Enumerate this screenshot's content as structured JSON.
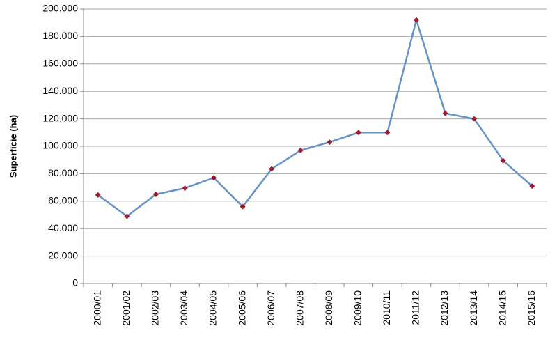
{
  "chart_data": {
    "type": "line",
    "y_label": "Superficie (ha)",
    "categories": [
      "2000/01",
      "2001/02",
      "2002/03",
      "2003/04",
      "2004/05",
      "2005/06",
      "2006/07",
      "2007/08",
      "2008/09",
      "2009/10",
      "2010/11",
      "2011/12",
      "2012/13",
      "2013/14",
      "2014/15",
      "2015/16"
    ],
    "series": [
      {
        "color": "#6592c8",
        "marker_color": "#a0182c",
        "values": [
          64500,
          49000,
          65000,
          69500,
          77000,
          56000,
          83500,
          97000,
          103000,
          110000,
          110000,
          192000,
          124000,
          120000,
          89500,
          71000
        ]
      }
    ],
    "ylim": [
      0,
      200000
    ],
    "yticks": [
      0,
      {
        "value": 20000,
        "label": "20.000"
      },
      {
        "value": 40000,
        "label": "40.000"
      },
      {
        "value": 60000,
        "label": "60.000"
      },
      {
        "value": 80000,
        "label": "80.000"
      },
      {
        "value": 100000,
        "label": "100.000"
      },
      {
        "value": 120000,
        "label": "120.000"
      },
      {
        "value": 140000,
        "label": "140.000"
      },
      {
        "value": 160000,
        "label": "160.000"
      },
      {
        "value": 180000,
        "label": "180.000"
      },
      {
        "value": 200000,
        "label": "200.000"
      }
    ],
    "grid": true
  }
}
